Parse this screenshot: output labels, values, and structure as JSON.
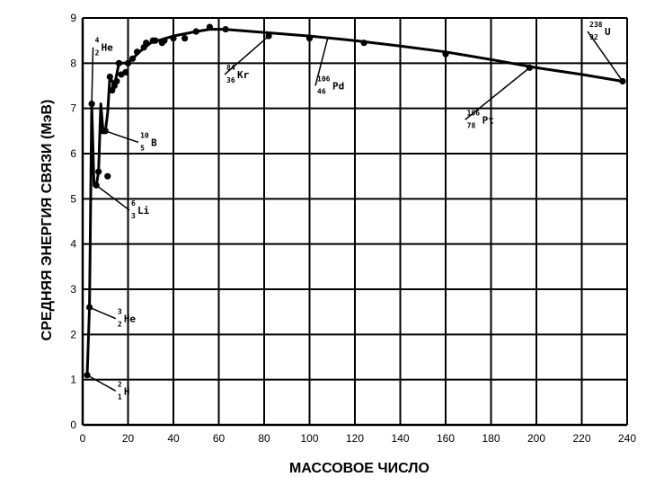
{
  "chart_data": {
    "type": "line",
    "xlabel": "МАССОВОЕ ЧИСЛО",
    "ylabel": "СРЕДНЯЯ ЭНЕРГИЯ СВЯЗИ (МэВ)",
    "xlim": [
      0,
      240
    ],
    "ylim": [
      0,
      9
    ],
    "xticks": [
      "0",
      "20",
      "40",
      "60",
      "80",
      "100",
      "120",
      "140",
      "160",
      "180",
      "200",
      "220",
      "240"
    ],
    "yticks": [
      "0",
      "1",
      "2",
      "3",
      "4",
      "5",
      "6",
      "7",
      "8",
      "9"
    ],
    "grid": true,
    "series": [
      {
        "curve": [
          [
            2,
            1.1
          ],
          [
            3,
            2.6
          ],
          [
            4,
            7.1
          ],
          [
            5,
            5.3
          ],
          [
            6,
            5.3
          ],
          [
            7,
            5.6
          ],
          [
            8,
            7.1
          ],
          [
            9,
            6.5
          ],
          [
            10,
            6.5
          ],
          [
            11,
            6.9
          ],
          [
            12,
            7.7
          ],
          [
            14,
            7.5
          ],
          [
            16,
            8.0
          ],
          [
            20,
            8.0
          ],
          [
            25,
            8.25
          ],
          [
            30,
            8.45
          ],
          [
            40,
            8.6
          ],
          [
            50,
            8.7
          ],
          [
            56,
            8.75
          ],
          [
            62,
            8.75
          ],
          [
            70,
            8.72
          ],
          [
            80,
            8.68
          ],
          [
            100,
            8.6
          ],
          [
            120,
            8.5
          ],
          [
            140,
            8.38
          ],
          [
            160,
            8.25
          ],
          [
            180,
            8.08
          ],
          [
            200,
            7.9
          ],
          [
            220,
            7.75
          ],
          [
            238,
            7.6
          ]
        ],
        "points": [
          [
            2,
            1.1
          ],
          [
            3,
            2.6
          ],
          [
            4,
            7.1
          ],
          [
            6,
            5.3
          ],
          [
            7,
            5.6
          ],
          [
            9,
            6.5
          ],
          [
            10,
            6.5
          ],
          [
            11,
            5.5
          ],
          [
            12,
            7.7
          ],
          [
            13,
            7.4
          ],
          [
            14,
            7.5
          ],
          [
            15,
            7.6
          ],
          [
            16,
            8.0
          ],
          [
            17,
            7.75
          ],
          [
            19,
            7.8
          ],
          [
            20,
            8.0
          ],
          [
            22,
            8.1
          ],
          [
            24,
            8.25
          ],
          [
            27,
            8.35
          ],
          [
            28,
            8.45
          ],
          [
            31,
            8.5
          ],
          [
            32,
            8.5
          ],
          [
            35,
            8.45
          ],
          [
            36,
            8.5
          ],
          [
            40,
            8.55
          ],
          [
            45,
            8.55
          ],
          [
            50,
            8.7
          ],
          [
            56,
            8.8
          ],
          [
            63,
            8.75
          ],
          [
            82,
            8.6
          ],
          [
            100,
            8.55
          ],
          [
            124,
            8.45
          ],
          [
            160,
            8.2
          ],
          [
            197,
            7.9
          ],
          [
            238,
            7.6
          ]
        ]
      }
    ],
    "annotations": [
      {
        "sup": "4",
        "sub": "2",
        "sym": "He"
      },
      {
        "sup": "3",
        "sub": "2",
        "sym": "He"
      },
      {
        "sup": "2",
        "sub": "1",
        "sym": "H"
      },
      {
        "sup": "6",
        "sub": "3",
        "sym": "Li"
      },
      {
        "sup": "10",
        "sub": "5",
        "sym": "B"
      },
      {
        "sup": "84",
        "sub": "36",
        "sym": "Kr"
      },
      {
        "sup": "106",
        "sub": "46",
        "sym": "Pd"
      },
      {
        "sup": "196",
        "sub": "78",
        "sym": "Pt"
      },
      {
        "sup": "238",
        "sub": "92",
        "sym": "U"
      }
    ]
  }
}
